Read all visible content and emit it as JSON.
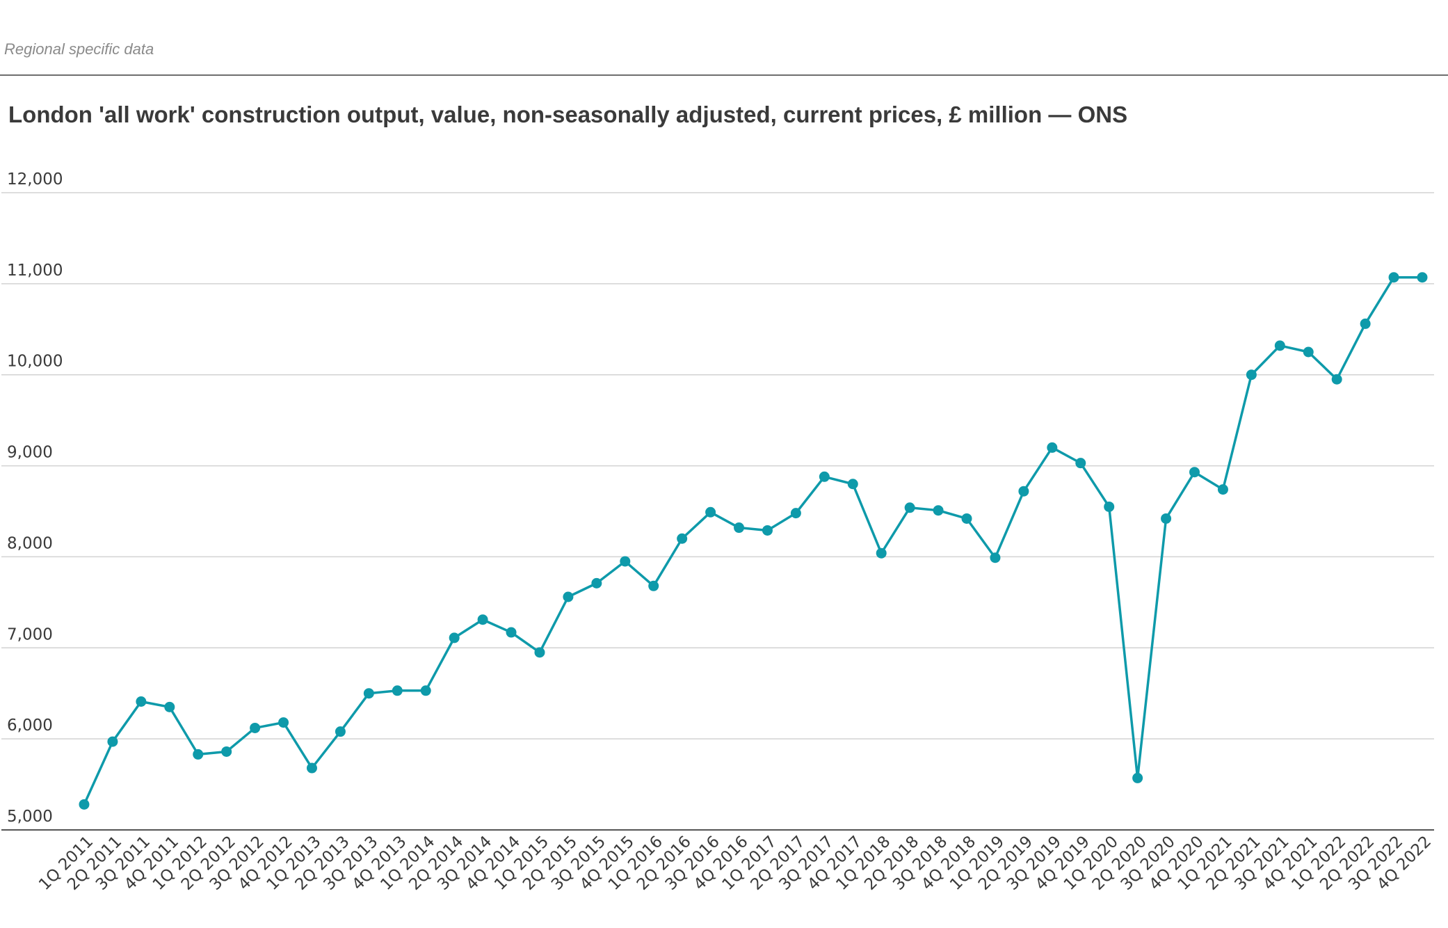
{
  "header": {
    "section_label": "Regional specific data"
  },
  "colors": {
    "series": "#0e9aaa",
    "grid": "#d2d2d2",
    "baseline": "#555555",
    "text": "#3a3a3a"
  },
  "chart_data": {
    "type": "line",
    "title": "London 'all work' construction output, value, non-seasonally adjusted, current prices, £ million — ONS",
    "xlabel": "",
    "ylabel": "",
    "ylim": [
      5000,
      12000
    ],
    "yticks": [
      5000,
      6000,
      7000,
      8000,
      9000,
      10000,
      11000,
      12000
    ],
    "ytick_labels": [
      "5,000",
      "6,000",
      "7,000",
      "8,000",
      "9,000",
      "10,000",
      "11,000",
      "12,000"
    ],
    "grid": true,
    "legend": "none",
    "categories": [
      "1Q 2011",
      "2Q 2011",
      "3Q 2011",
      "4Q 2011",
      "1Q 2012",
      "2Q 2012",
      "3Q 2012",
      "4Q 2012",
      "1Q 2013",
      "2Q 2013",
      "3Q 2013",
      "4Q 2013",
      "1Q 2014",
      "2Q 2014",
      "3Q 2014",
      "4Q 2014",
      "1Q 2015",
      "2Q 2015",
      "3Q 2015",
      "4Q 2015",
      "1Q 2016",
      "2Q 2016",
      "3Q 2016",
      "4Q 2016",
      "1Q 2017",
      "2Q 2017",
      "3Q 2017",
      "4Q 2017",
      "1Q 2018",
      "2Q 2018",
      "3Q 2018",
      "4Q 2018",
      "1Q 2019",
      "2Q 2019",
      "3Q 2019",
      "4Q 2019",
      "1Q 2020",
      "2Q 2020",
      "3Q 2020",
      "4Q 2020",
      "1Q 2021",
      "2Q 2021",
      "3Q 2021",
      "4Q 2021",
      "1Q 2022",
      "2Q 2022",
      "3Q 2022",
      "4Q 2022"
    ],
    "values": [
      5280,
      5970,
      6410,
      6350,
      5830,
      5860,
      6120,
      6180,
      5680,
      6080,
      6500,
      6530,
      6530,
      7110,
      7310,
      7170,
      6950,
      7560,
      7710,
      7950,
      7680,
      8200,
      8490,
      8320,
      8290,
      8480,
      8880,
      8800,
      8040,
      8540,
      8510,
      8420,
      7990,
      8720,
      9200,
      9030,
      8550,
      5570,
      8420,
      8930,
      8740,
      10000,
      10320,
      10250,
      9950,
      10560,
      11070,
      11070
    ]
  }
}
